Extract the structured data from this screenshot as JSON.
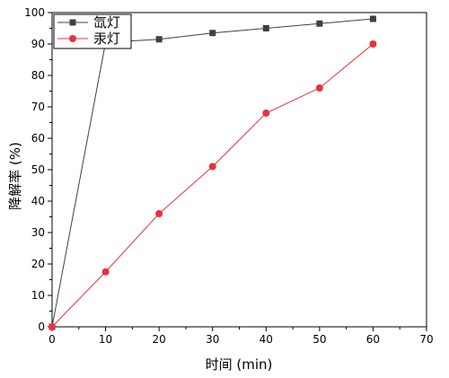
{
  "chart_data": {
    "type": "line",
    "xlabel": "时间 (min)",
    "ylabel": "降解率 (%)",
    "xlim": [
      0,
      70
    ],
    "ylim": [
      0,
      100
    ],
    "xticks": [
      0,
      10,
      20,
      30,
      40,
      50,
      60,
      70
    ],
    "yticks": [
      0,
      10,
      20,
      30,
      40,
      50,
      60,
      70,
      80,
      90,
      100
    ],
    "grid": false,
    "legend_position": "top-left",
    "series": [
      {
        "name": "氙灯",
        "color": "#404040",
        "marker": "square",
        "x": [
          0,
          10,
          20,
          30,
          40,
          50,
          60
        ],
        "y": [
          0,
          90.5,
          91.5,
          93.5,
          95,
          96.5,
          98
        ]
      },
      {
        "name": "汞灯",
        "color": "#e8323c",
        "marker": "circle",
        "x": [
          0,
          10,
          20,
          30,
          40,
          50,
          60
        ],
        "y": [
          0,
          17.5,
          36,
          51,
          68,
          76,
          90
        ]
      }
    ]
  }
}
